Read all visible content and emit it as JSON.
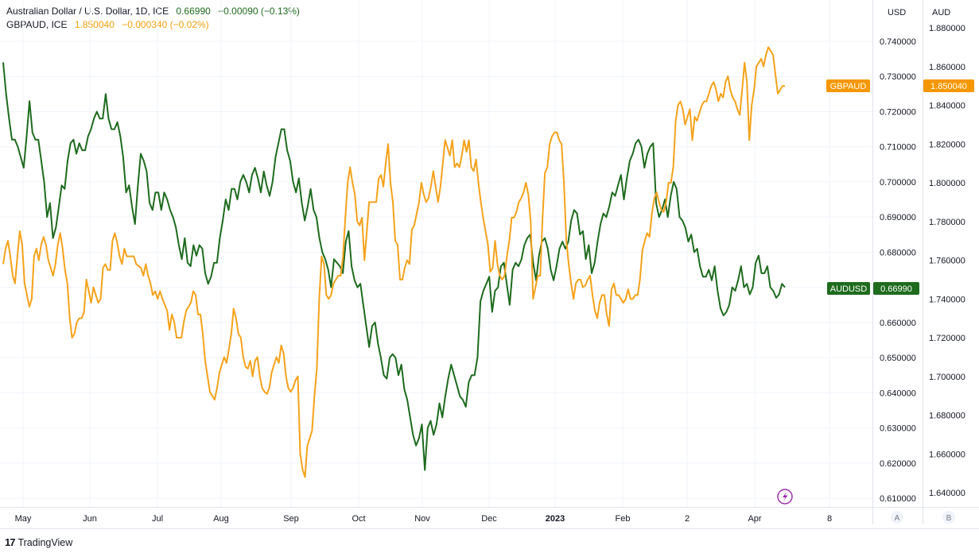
{
  "chart_data": {
    "type": "line",
    "title": "Australian Dollar / U.S. Dollar, 1D, ICE",
    "x_ticks": [
      "May",
      "Jun",
      "Jul",
      "Aug",
      "Sep",
      "Oct",
      "Nov",
      "Dec",
      "2023",
      "Feb",
      "2",
      "Apr",
      "8"
    ],
    "left_scale_label": "USD",
    "right_scale_label": "AUD",
    "usd_ticks": [
      "0.740000",
      "0.730000",
      "0.720000",
      "0.710000",
      "0.700000",
      "0.690000",
      "0.680000",
      "0.670000",
      "0.660000",
      "0.650000",
      "0.640000",
      "0.630000",
      "0.620000",
      "0.610000"
    ],
    "aud_ticks": [
      "1.880000",
      "1.860000",
      "1.840000",
      "1.820000",
      "1.800000",
      "1.780000",
      "1.760000",
      "1.740000",
      "1.720000",
      "1.700000",
      "1.680000",
      "1.660000",
      "1.640000"
    ],
    "usd_range": [
      0.6075,
      0.7455
    ],
    "aud_range": [
      1.635,
      1.8895
    ],
    "scale_buttons": [
      "A",
      "B"
    ],
    "series": [
      {
        "name": "AUDUSD",
        "symbol": "Australian Dollar / U.S. Dollar, 1D, ICE",
        "last": "0.66990",
        "change": "−0.00090",
        "change_pct": "(−0.13%)",
        "badge": "0.66990",
        "color": "#1e6b1e",
        "axis": "usd",
        "values": [
          0.734,
          0.725,
          0.718,
          0.712,
          0.712,
          0.71,
          0.707,
          0.704,
          0.713,
          0.723,
          0.714,
          0.712,
          0.712,
          0.706,
          0.7,
          0.69,
          0.694,
          0.684,
          0.687,
          0.693,
          0.699,
          0.698,
          0.706,
          0.711,
          0.712,
          0.708,
          0.711,
          0.709,
          0.709,
          0.713,
          0.715,
          0.718,
          0.72,
          0.718,
          0.718,
          0.725,
          0.718,
          0.715,
          0.715,
          0.717,
          0.713,
          0.707,
          0.697,
          0.699,
          0.693,
          0.688,
          0.699,
          0.708,
          0.706,
          0.703,
          0.694,
          0.692,
          0.697,
          0.697,
          0.692,
          0.697,
          0.695,
          0.692,
          0.69,
          0.687,
          0.682,
          0.678,
          0.684,
          0.677,
          0.676,
          0.682,
          0.679,
          0.682,
          0.681,
          0.674,
          0.671,
          0.673,
          0.677,
          0.677,
          0.684,
          0.689,
          0.695,
          0.692,
          0.698,
          0.698,
          0.695,
          0.7,
          0.702,
          0.7,
          0.697,
          0.702,
          0.704,
          0.701,
          0.697,
          0.703,
          0.699,
          0.696,
          0.7,
          0.707,
          0.711,
          0.715,
          0.715,
          0.709,
          0.706,
          0.7,
          0.697,
          0.701,
          0.694,
          0.689,
          0.693,
          0.698,
          0.692,
          0.69,
          0.684,
          0.68,
          0.678,
          0.675,
          0.67,
          0.678,
          0.677,
          0.676,
          0.674,
          0.683,
          0.686,
          0.676,
          0.672,
          0.67,
          0.671,
          0.665,
          0.659,
          0.653,
          0.659,
          0.66,
          0.654,
          0.65,
          0.645,
          0.644,
          0.65,
          0.651,
          0.65,
          0.645,
          0.648,
          0.641,
          0.638,
          0.633,
          0.628,
          0.625,
          0.627,
          0.631,
          0.618,
          0.63,
          0.632,
          0.628,
          0.631,
          0.637,
          0.633,
          0.639,
          0.644,
          0.648,
          0.645,
          0.642,
          0.639,
          0.638,
          0.636,
          0.643,
          0.645,
          0.645,
          0.65,
          0.666,
          0.669,
          0.671,
          0.673,
          0.663,
          0.669,
          0.67,
          0.676,
          0.677,
          0.671,
          0.665,
          0.675,
          0.677,
          0.676,
          0.678,
          0.682,
          0.684,
          0.685,
          0.677,
          0.672,
          0.679,
          0.683,
          0.684,
          0.681,
          0.675,
          0.672,
          0.676,
          0.681,
          0.683,
          0.681,
          0.683,
          0.689,
          0.692,
          0.691,
          0.685,
          0.686,
          0.678,
          0.682,
          0.674,
          0.677,
          0.683,
          0.688,
          0.691,
          0.69,
          0.693,
          0.697,
          0.696,
          0.699,
          0.702,
          0.695,
          0.701,
          0.706,
          0.708,
          0.711,
          0.712,
          0.71,
          0.704,
          0.708,
          0.71,
          0.711,
          0.694,
          0.69,
          0.692,
          0.695,
          0.69,
          0.696,
          0.7,
          0.698,
          0.69,
          0.689,
          0.687,
          0.683,
          0.685,
          0.68,
          0.681,
          0.676,
          0.673,
          0.673,
          0.675,
          0.672,
          0.676,
          0.669,
          0.664,
          0.662,
          0.663,
          0.665,
          0.67,
          0.669,
          0.672,
          0.676,
          0.67,
          0.671,
          0.668,
          0.67,
          0.677,
          0.679,
          0.674,
          0.674,
          0.676,
          0.67,
          0.669,
          0.667,
          0.668,
          0.671,
          0.67
        ],
        "label_bounds": [
          0.618,
          0.734
        ]
      },
      {
        "name": "GBPAUD",
        "symbol": "GBPAUD, ICE",
        "last": "1.850040",
        "change": "−0.000340",
        "change_pct": "(−0.02%)",
        "badge": "1.850040",
        "color": "#f5a21b",
        "axis": "aud",
        "values": [
          1.758,
          1.766,
          1.77,
          1.762,
          1.752,
          1.748,
          1.762,
          1.775,
          1.768,
          1.748,
          1.742,
          1.736,
          1.74,
          1.762,
          1.766,
          1.76,
          1.768,
          1.772,
          1.768,
          1.76,
          1.756,
          1.752,
          1.758,
          1.768,
          1.774,
          1.766,
          1.755,
          1.748,
          1.73,
          1.72,
          1.722,
          1.728,
          1.73,
          1.73,
          1.733,
          1.75,
          1.744,
          1.738,
          1.746,
          1.742,
          1.738,
          1.74,
          1.756,
          1.758,
          1.755,
          1.755,
          1.77,
          1.774,
          1.769,
          1.762,
          1.758,
          1.766,
          1.762,
          1.762,
          1.762,
          1.762,
          1.758,
          1.757,
          1.756,
          1.752,
          1.758,
          1.752,
          1.748,
          1.742,
          1.744,
          1.74,
          1.744,
          1.74,
          1.737,
          1.734,
          1.724,
          1.732,
          1.728,
          1.72,
          1.72,
          1.72,
          1.728,
          1.734,
          1.736,
          1.738,
          1.744,
          1.742,
          1.732,
          1.732,
          1.722,
          1.708,
          1.7,
          1.692,
          1.69,
          1.688,
          1.694,
          1.702,
          1.706,
          1.71,
          1.707,
          1.714,
          1.722,
          1.735,
          1.73,
          1.722,
          1.72,
          1.71,
          1.705,
          1.704,
          1.708,
          1.7,
          1.708,
          1.71,
          1.7,
          1.694,
          1.692,
          1.691,
          1.694,
          1.702,
          1.706,
          1.71,
          1.707,
          1.716,
          1.712,
          1.7,
          1.694,
          1.692,
          1.694,
          1.698,
          1.7,
          1.66,
          1.652,
          1.648,
          1.664,
          1.668,
          1.672,
          1.69,
          1.704,
          1.74,
          1.762,
          1.758,
          1.742,
          1.74,
          1.742,
          1.748,
          1.75,
          1.752,
          1.752,
          1.762,
          1.782,
          1.8,
          1.808,
          1.8,
          1.794,
          1.78,
          1.778,
          1.782,
          1.76,
          1.774,
          1.79,
          1.79,
          1.79,
          1.79,
          1.802,
          1.804,
          1.798,
          1.81,
          1.82,
          1.8,
          1.79,
          1.77,
          1.768,
          1.75,
          1.75,
          1.756,
          1.76,
          1.758,
          1.776,
          1.778,
          1.784,
          1.79,
          1.8,
          1.794,
          1.79,
          1.792,
          1.798,
          1.806,
          1.798,
          1.79,
          1.798,
          1.81,
          1.822,
          1.818,
          1.814,
          1.822,
          1.808,
          1.81,
          1.808,
          1.814,
          1.822,
          1.816,
          1.822,
          1.808,
          1.806,
          1.812,
          1.8,
          1.79,
          1.782,
          1.775,
          1.768,
          1.754,
          1.756,
          1.77,
          1.758,
          1.752,
          1.75,
          1.752,
          1.762,
          1.77,
          1.782,
          1.782,
          1.785,
          1.79,
          1.792,
          1.795,
          1.8,
          1.794,
          1.78,
          1.74,
          1.746,
          1.752,
          1.752,
          1.782,
          1.805,
          1.808,
          1.82,
          1.824,
          1.826,
          1.826,
          1.822,
          1.82,
          1.8,
          1.77,
          1.758,
          1.748,
          1.74,
          1.748,
          1.75,
          1.75,
          1.746,
          1.747,
          1.75,
          1.752,
          1.742,
          1.734,
          1.73,
          1.738,
          1.742,
          1.742,
          1.732,
          1.726,
          1.745,
          1.748,
          1.742,
          1.742,
          1.74,
          1.738,
          1.74,
          1.745,
          1.74,
          1.74,
          1.742,
          1.742,
          1.75,
          1.765,
          1.77,
          1.774,
          1.772,
          1.784,
          1.792,
          1.795,
          1.79,
          1.786,
          1.785,
          1.79,
          1.8,
          1.8,
          1.808,
          1.832,
          1.84,
          1.842,
          1.838,
          1.83,
          1.834,
          1.838,
          1.822,
          1.834,
          1.832,
          1.836,
          1.84,
          1.842,
          1.842,
          1.846,
          1.85,
          1.852,
          1.848,
          1.842,
          1.846,
          1.844,
          1.852,
          1.855,
          1.848,
          1.844,
          1.842,
          1.838,
          1.835,
          1.848,
          1.862,
          1.852,
          1.822,
          1.84,
          1.848,
          1.86,
          1.862,
          1.864,
          1.86,
          1.866,
          1.87,
          1.868,
          1.866,
          1.856,
          1.846,
          1.848,
          1.85,
          1.85
        ],
        "label_bounds": [
          1.648,
          1.87
        ]
      }
    ]
  },
  "footer": {
    "logo": "17",
    "brand": "TradingView"
  }
}
